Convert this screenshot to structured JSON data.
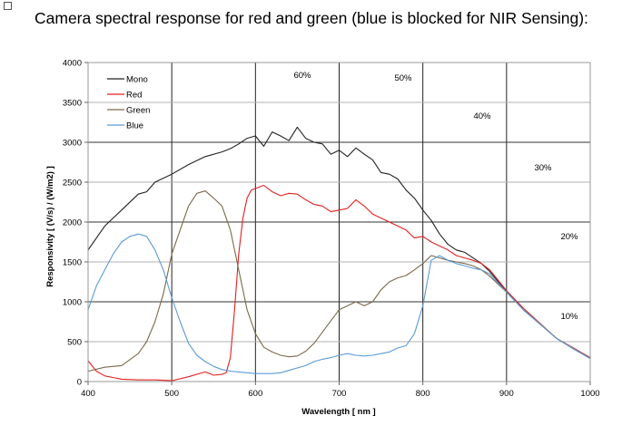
{
  "page": {
    "title": "Camera spectral response for red and green (blue is blocked for NIR Sensing):"
  },
  "chart_data": {
    "type": "line",
    "title": "Camera spectral response for red and green (blue is blocked for NIR Sensing):",
    "xlabel": "Wavelength  [ nm ]",
    "ylabel": "Responsivity  [ (V/s) / (W/m2) ]",
    "xlim": [
      400,
      1000
    ],
    "ylim": [
      0,
      4000
    ],
    "xticks": [
      400,
      500,
      600,
      700,
      800,
      900,
      1000
    ],
    "yticks": [
      0,
      500,
      1000,
      1500,
      2000,
      2500,
      3000,
      3500,
      4000
    ],
    "grid": true,
    "legend_position": "top-left",
    "series": [
      {
        "name": "Mono",
        "color": "#222222",
        "x": [
          400,
          420,
          440,
          460,
          470,
          480,
          500,
          520,
          540,
          560,
          570,
          580,
          590,
          600,
          610,
          620,
          630,
          640,
          650,
          660,
          670,
          680,
          690,
          700,
          710,
          720,
          730,
          740,
          750,
          760,
          770,
          780,
          790,
          800,
          810,
          820,
          830,
          840,
          850,
          860,
          870,
          880,
          900,
          920,
          940,
          960,
          980,
          1000
        ],
        "y": [
          1650,
          1950,
          2150,
          2350,
          2380,
          2500,
          2600,
          2720,
          2820,
          2880,
          2920,
          2980,
          3050,
          3080,
          2950,
          3130,
          3080,
          3020,
          3190,
          3050,
          3000,
          2980,
          2850,
          2900,
          2820,
          2930,
          2850,
          2780,
          2620,
          2600,
          2540,
          2400,
          2300,
          2150,
          2020,
          1850,
          1720,
          1650,
          1620,
          1550,
          1480,
          1380,
          1130,
          900,
          720,
          540,
          410,
          290
        ]
      },
      {
        "name": "Red",
        "color": "#e02020",
        "x": [
          400,
          410,
          420,
          440,
          460,
          480,
          500,
          520,
          540,
          550,
          560,
          565,
          570,
          575,
          580,
          585,
          590,
          595,
          600,
          610,
          620,
          630,
          640,
          650,
          660,
          670,
          680,
          690,
          700,
          710,
          720,
          730,
          740,
          750,
          760,
          770,
          780,
          790,
          800,
          810,
          820,
          830,
          840,
          850,
          860,
          870,
          880,
          900,
          920,
          940,
          960,
          980,
          1000
        ],
        "y": [
          260,
          130,
          70,
          30,
          20,
          20,
          10,
          60,
          120,
          80,
          90,
          110,
          300,
          900,
          1600,
          2050,
          2300,
          2400,
          2420,
          2460,
          2380,
          2330,
          2360,
          2350,
          2280,
          2220,
          2200,
          2130,
          2150,
          2170,
          2280,
          2200,
          2100,
          2050,
          2000,
          1950,
          1900,
          1800,
          1820,
          1750,
          1700,
          1650,
          1580,
          1550,
          1520,
          1480,
          1400,
          1140,
          920,
          730,
          540,
          420,
          300
        ]
      },
      {
        "name": "Green",
        "color": "#7a6a4a",
        "x": [
          400,
          420,
          440,
          460,
          470,
          480,
          490,
          500,
          510,
          520,
          530,
          540,
          550,
          560,
          570,
          580,
          590,
          600,
          610,
          620,
          630,
          640,
          650,
          660,
          670,
          680,
          690,
          700,
          710,
          720,
          730,
          740,
          750,
          760,
          770,
          780,
          790,
          800,
          810,
          820,
          830,
          840,
          850,
          860,
          870,
          880,
          900,
          920,
          940,
          960,
          980,
          1000
        ],
        "y": [
          130,
          180,
          200,
          350,
          500,
          750,
          1100,
          1600,
          1900,
          2200,
          2360,
          2390,
          2300,
          2200,
          1900,
          1400,
          900,
          600,
          430,
          370,
          330,
          310,
          320,
          380,
          480,
          620,
          760,
          900,
          950,
          1000,
          950,
          1000,
          1150,
          1250,
          1300,
          1330,
          1400,
          1480,
          1580,
          1550,
          1520,
          1500,
          1480,
          1450,
          1400,
          1320,
          1120,
          900,
          720,
          540,
          410,
          290
        ]
      },
      {
        "name": "Blue",
        "color": "#5b9bd5",
        "x": [
          400,
          410,
          420,
          430,
          440,
          450,
          460,
          470,
          480,
          490,
          500,
          510,
          520,
          530,
          540,
          550,
          560,
          570,
          580,
          590,
          600,
          610,
          620,
          630,
          640,
          650,
          660,
          670,
          680,
          690,
          700,
          710,
          720,
          730,
          740,
          750,
          760,
          770,
          780,
          790,
          800,
          810,
          820,
          830,
          840,
          850,
          860,
          870,
          880,
          900,
          920,
          940,
          960,
          980,
          1000
        ],
        "y": [
          900,
          1200,
          1400,
          1600,
          1750,
          1820,
          1850,
          1820,
          1650,
          1400,
          1050,
          750,
          480,
          330,
          250,
          190,
          150,
          130,
          120,
          110,
          100,
          100,
          100,
          110,
          140,
          170,
          200,
          250,
          280,
          300,
          330,
          350,
          330,
          320,
          330,
          350,
          370,
          420,
          450,
          600,
          950,
          1520,
          1580,
          1520,
          1480,
          1450,
          1420,
          1400,
          1350,
          1120,
          900,
          720,
          540,
          410,
          290
        ]
      }
    ],
    "efficiency_lines": [
      "60%",
      "50%",
      "40%",
      "30%",
      "20%",
      "10%"
    ]
  }
}
